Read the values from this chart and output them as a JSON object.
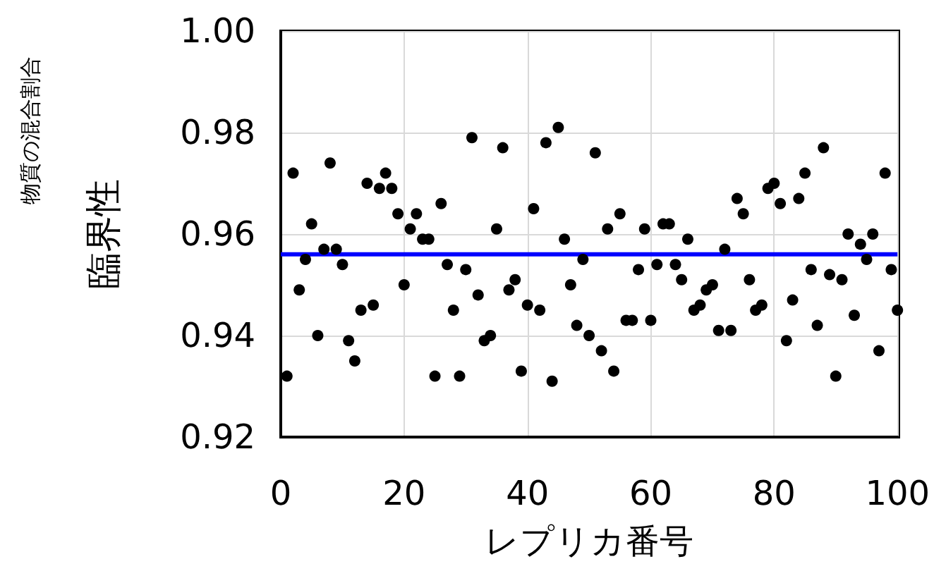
{
  "chart_data": {
    "type": "scatter",
    "xlabel": "レプリカ番号",
    "ylabel": "臨界性",
    "annotations": [
      "物質の混合割合"
    ],
    "x": [
      1,
      2,
      3,
      4,
      5,
      6,
      7,
      8,
      9,
      10,
      11,
      12,
      13,
      14,
      15,
      16,
      17,
      18,
      19,
      20,
      21,
      22,
      23,
      24,
      25,
      26,
      27,
      28,
      29,
      30,
      31,
      32,
      33,
      34,
      35,
      36,
      37,
      38,
      39,
      40,
      41,
      42,
      43,
      44,
      45,
      46,
      47,
      48,
      49,
      50,
      51,
      52,
      53,
      54,
      55,
      56,
      57,
      58,
      59,
      60,
      61,
      62,
      63,
      64,
      65,
      66,
      67,
      68,
      69,
      70,
      71,
      72,
      73,
      74,
      75,
      76,
      77,
      78,
      79,
      80,
      81,
      82,
      83,
      84,
      85,
      86,
      87,
      88,
      89,
      90,
      91,
      92,
      93,
      94,
      95,
      96,
      97,
      98,
      99,
      100
    ],
    "series": [
      {
        "color": "#000000",
        "values": [
          0.932,
          0.972,
          0.949,
          0.955,
          0.962,
          0.94,
          0.957,
          0.974,
          0.957,
          0.954,
          0.939,
          0.935,
          0.945,
          0.97,
          0.946,
          0.969,
          0.972,
          0.969,
          0.964,
          0.95,
          0.961,
          0.964,
          0.959,
          0.959,
          0.932,
          0.966,
          0.954,
          0.945,
          0.932,
          0.953,
          0.979,
          0.948,
          0.939,
          0.94,
          0.961,
          0.977,
          0.949,
          0.951,
          0.933,
          0.946,
          0.965,
          0.945,
          0.978,
          0.931,
          0.981,
          0.959,
          0.95,
          0.942,
          0.955,
          0.94,
          0.976,
          0.937,
          0.961,
          0.933,
          0.964,
          0.943,
          0.943,
          0.953,
          0.961,
          0.943,
          0.954,
          0.962,
          0.962,
          0.954,
          0.951,
          0.959,
          0.945,
          0.946,
          0.949,
          0.95,
          0.941,
          0.957,
          0.941,
          0.967,
          0.964,
          0.951,
          0.945,
          0.946,
          0.969,
          0.97,
          0.966,
          0.939,
          0.947,
          0.967,
          0.972,
          0.953,
          0.942,
          0.977,
          0.952,
          0.932,
          0.951,
          0.96,
          0.944,
          0.958,
          0.955,
          0.96,
          0.937,
          0.972,
          0.953,
          0.945
        ]
      }
    ],
    "xlim": [
      0,
      100
    ],
    "xticks": [
      0,
      20,
      40,
      60,
      80,
      100
    ],
    "ylim": [
      0.92,
      1.0
    ],
    "yticks": [
      {
        "value": 0.92,
        "label": "0.92"
      },
      {
        "value": 0.94,
        "label": "0.94"
      },
      {
        "value": 0.96,
        "label": "0.96"
      },
      {
        "value": 0.98,
        "label": "0.98"
      },
      {
        "value": 1.0,
        "label": "1.00"
      }
    ],
    "ref_lines": [
      {
        "axis": "y",
        "value": 0.956,
        "color": "#0000ff",
        "line_style": "solid"
      }
    ],
    "grid": true,
    "marker": "circle"
  }
}
